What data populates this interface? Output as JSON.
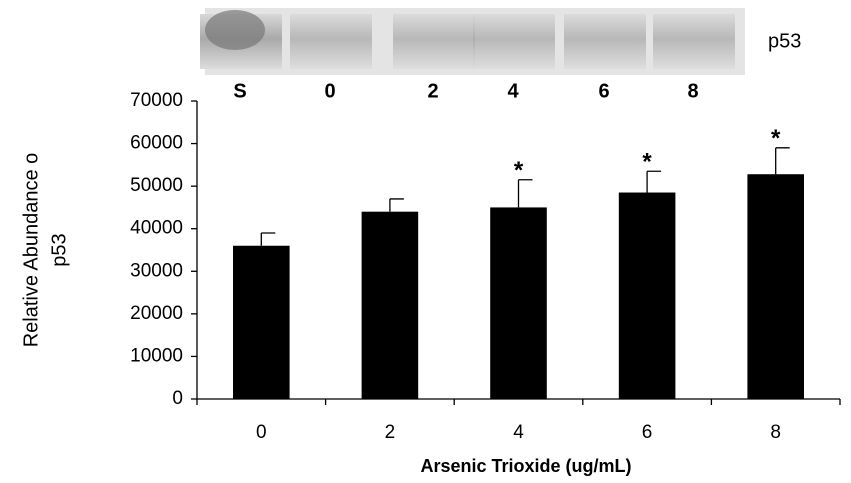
{
  "chart_data": {
    "type": "bar",
    "blot": {
      "lanes": [
        "S",
        "0",
        "2",
        "4",
        "6",
        "8"
      ],
      "label": "p53"
    },
    "xlabel": "Arsenic Trioxide (ug/mL)",
    "ylabel": [
      "Relative Abundance o",
      "p53"
    ],
    "categories": [
      "0",
      "2",
      "4",
      "6",
      "8"
    ],
    "values": [
      36000,
      44000,
      45000,
      48500,
      52800
    ],
    "errors": [
      3000,
      3000,
      6500,
      5000,
      6200
    ],
    "significance": [
      null,
      null,
      "*",
      "*",
      "*"
    ],
    "color": "#000000",
    "ylim": [
      0,
      70000
    ],
    "yticks": [
      0,
      10000,
      20000,
      30000,
      40000,
      50000,
      60000,
      70000
    ],
    "grid": false
  }
}
